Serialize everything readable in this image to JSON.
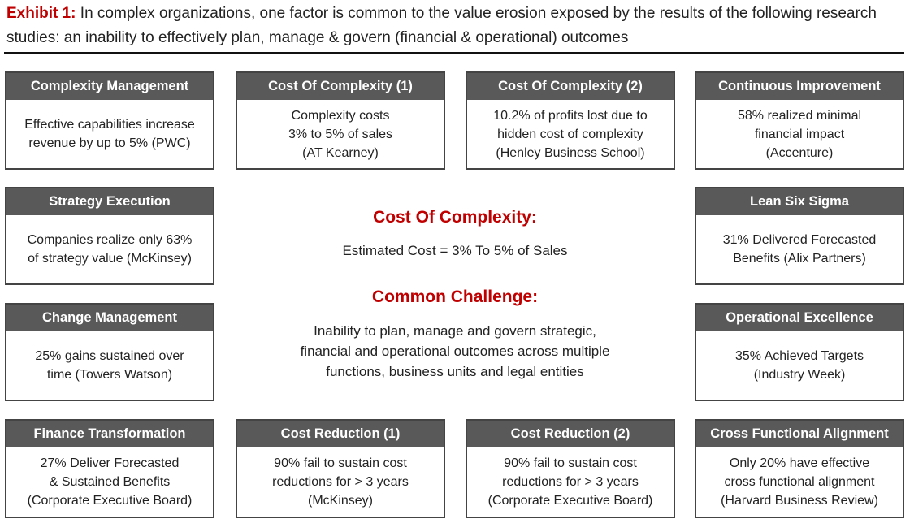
{
  "title": {
    "label": "Exhibit 1:",
    "text": " In complex organizations, one factor is common to the value erosion exposed by the results of the following research studies: an inability to effectively plan, manage & govern (financial & operational) outcomes"
  },
  "cards": [
    {
      "title": "Complexity Management",
      "body": "Effective capabilities increase\nrevenue by up to 5% (PWC)"
    },
    {
      "title": "Cost Of Complexity (1)",
      "body": "Complexity costs\n3% to 5% of sales\n(AT Kearney)"
    },
    {
      "title": "Cost Of Complexity (2)",
      "body": "10.2% of profits lost due to\nhidden cost of complexity\n(Henley Business School)"
    },
    {
      "title": "Continuous Improvement",
      "body": "58% realized minimal\nfinancial impact\n(Accenture)"
    },
    {
      "title": "Strategy Execution",
      "body": "Companies realize only 63%\nof strategy value (McKinsey)"
    },
    {
      "title": "Lean Six Sigma",
      "body": "31% Delivered Forecasted\nBenefits  (Alix Partners)"
    },
    {
      "title": "Change Management",
      "body": "25% gains sustained over\ntime (Towers Watson)"
    },
    {
      "title": "Operational Excellence",
      "body": "35% Achieved Targets\n(Industry Week)"
    },
    {
      "title": "Finance Transformation",
      "body": "27% Deliver Forecasted\n& Sustained Benefits\n(Corporate Executive Board)"
    },
    {
      "title": "Cost Reduction (1)",
      "body": "90% fail to sustain cost\nreductions for > 3 years\n(McKinsey)"
    },
    {
      "title": "Cost Reduction (2)",
      "body": "90% fail to sustain cost\nreductions for > 3 years\n(Corporate Executive Board)"
    },
    {
      "title": "Cross Functional Alignment",
      "body": "Only 20% have effective\ncross functional alignment\n(Harvard Business Review)"
    }
  ],
  "center": {
    "cost_heading": "Cost Of Complexity:",
    "cost_text": "Estimated Cost = 3% To 5% of Sales",
    "challenge_heading": "Common Challenge:",
    "challenge_text": "Inability to plan, manage and govern strategic,\nfinancial and operational outcomes across multiple\nfunctions, business units and legal entities"
  },
  "colors": {
    "accent": "#c00000",
    "header_bg": "#595959",
    "border": "#444444"
  }
}
